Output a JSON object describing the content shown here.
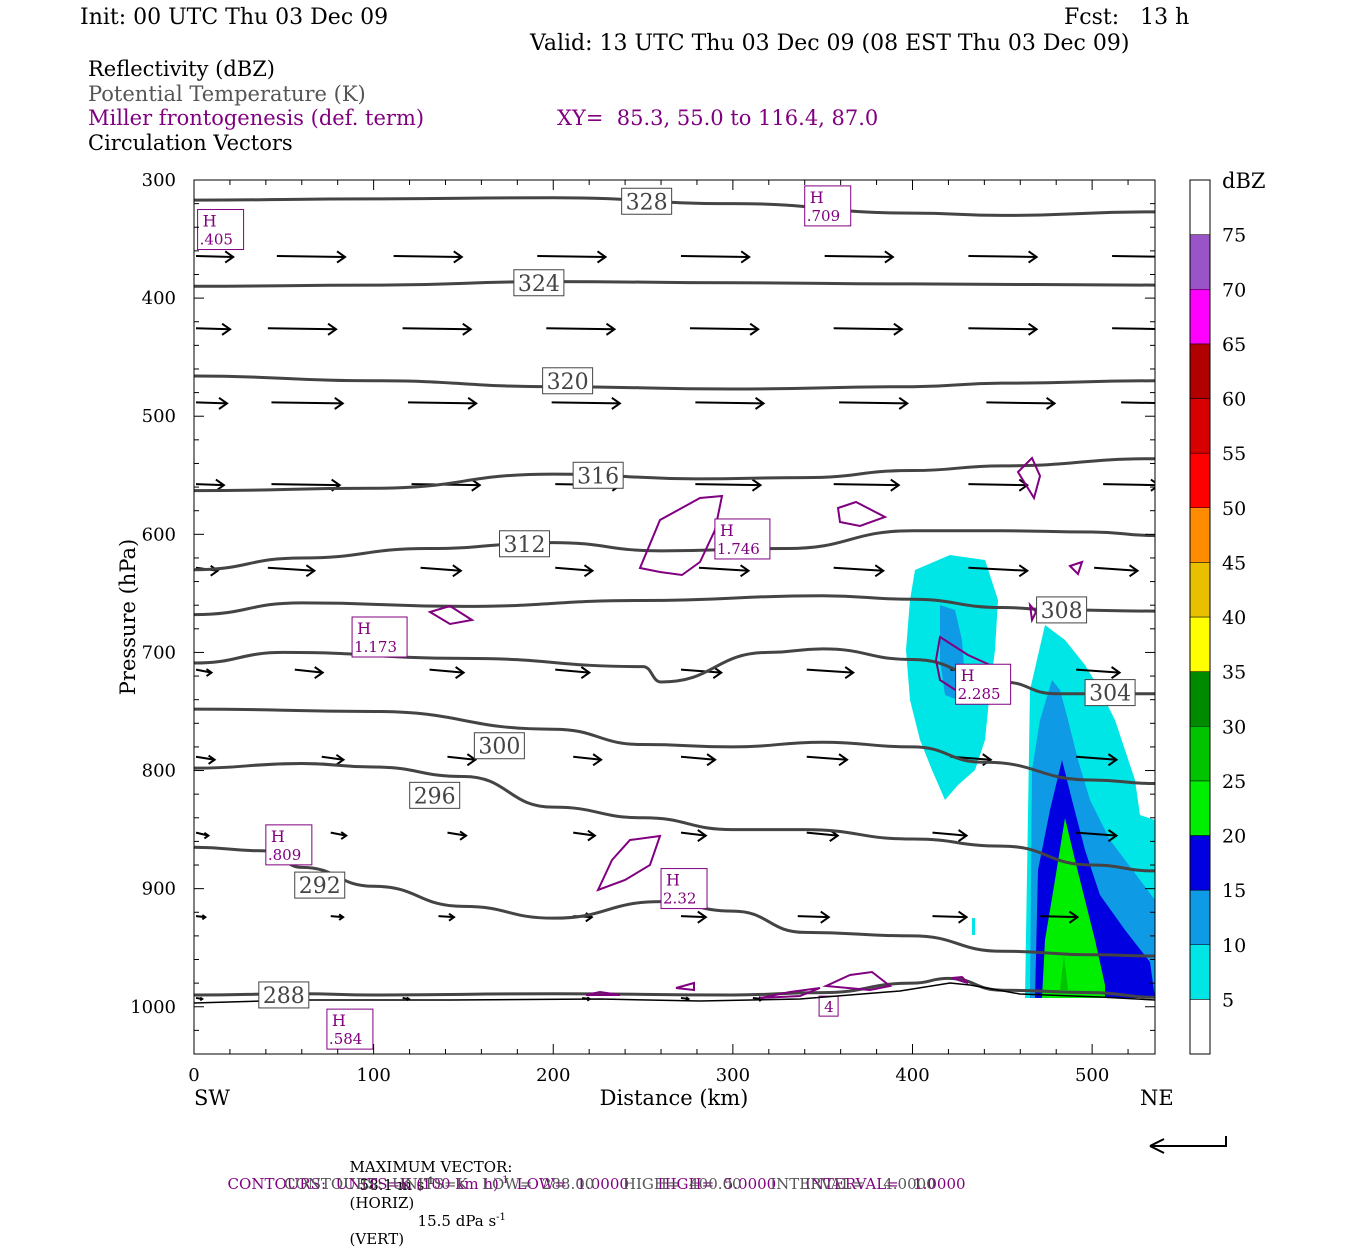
{
  "header": {
    "init": "Init: 00 UTC Thu 03 Dec 09",
    "fcst": "Fcst:   13 h",
    "valid": "Valid: 13 UTC Thu 03 Dec 09 (08 EST Thu 03 Dec 09)"
  },
  "fields": {
    "reflectivity": "Reflectivity (dBZ)",
    "theta": "Potential Temperature (K)",
    "miller": "Miller frontogenesis (def. term)",
    "xy": "XY=  85.3, 55.0 to 116.4, 87.0",
    "vectors": "Circulation Vectors"
  },
  "footer": {
    "max_vector_label": "MAXIMUM VECTOR:",
    "max_vector_horiz": "58.1 m s",
    "horiz_tag": "(HORIZ)",
    "max_vector_vert": "15.5 dPa s",
    "vert_tag": "(VERT)",
    "sup": "-1",
    "contours1_a": "CONTOURS:  UNITS=K (100 km h)",
    "contours1_b": "LOW=  1.0000      HIGH=  5.0000      INTERVAL=   1.0000",
    "contours2": "CONTOURS:  UNITS=K   LOW=  288.00      HIGH=  400.00      INTERVAL=    4.0000"
  },
  "colors": {
    "theta": "#444444",
    "miller": "#800080",
    "vector": "#000000"
  },
  "chart_data": {
    "type": "heatmap",
    "xlabel": "Distance (km)",
    "ylabel": "Pressure (hPa)",
    "xlim": [
      0,
      535
    ],
    "ylim": [
      1040,
      300
    ],
    "x_ticks": [
      0,
      100,
      200,
      300,
      400,
      500
    ],
    "y_ticks": [
      300,
      400,
      500,
      600,
      700,
      800,
      900,
      1000
    ],
    "x_endpoints": [
      "SW",
      "NE"
    ],
    "colorbar": {
      "unit": "dBZ",
      "levels": [
        5,
        10,
        15,
        20,
        25,
        30,
        35,
        40,
        45,
        50,
        55,
        60,
        65,
        70,
        75
      ],
      "colors": [
        "#ffffff",
        "#00e5e5",
        "#0f9ae6",
        "#0000e0",
        "#00ee00",
        "#00c400",
        "#008a00",
        "#ffff00",
        "#e8c000",
        "#ff8c00",
        "#ff0000",
        "#d60000",
        "#b00000",
        "#ff00ff",
        "#9955c8",
        "#ffffff"
      ]
    },
    "theta_contours": [
      {
        "value": "328",
        "points": [
          [
            0,
            317
          ],
          [
            100,
            316
          ],
          [
            200,
            315
          ],
          [
            300,
            320
          ],
          [
            400,
            328
          ],
          [
            450,
            330
          ],
          [
            535,
            327
          ]
        ],
        "label_at": [
          252,
          318
        ]
      },
      {
        "value": "324",
        "points": [
          [
            0,
            390
          ],
          [
            100,
            389
          ],
          [
            200,
            386
          ],
          [
            300,
            387
          ],
          [
            400,
            388
          ],
          [
            535,
            389
          ]
        ],
        "label_at": [
          192,
          387
        ]
      },
      {
        "value": "320",
        "points": [
          [
            0,
            466
          ],
          [
            100,
            470
          ],
          [
            200,
            475
          ],
          [
            300,
            477
          ],
          [
            400,
            475
          ],
          [
            450,
            472
          ],
          [
            535,
            470
          ]
        ],
        "label_at": [
          208,
          470
        ]
      },
      {
        "value": "316",
        "points": [
          [
            0,
            563
          ],
          [
            100,
            561
          ],
          [
            200,
            549
          ],
          [
            280,
            553
          ],
          [
            340,
            552
          ],
          [
            400,
            546
          ],
          [
            450,
            542
          ],
          [
            535,
            536
          ]
        ],
        "label_at": [
          225,
          550
        ]
      },
      {
        "value": "312",
        "points": [
          [
            0,
            630
          ],
          [
            60,
            620
          ],
          [
            130,
            612
          ],
          [
            200,
            607
          ],
          [
            260,
            614
          ],
          [
            330,
            612
          ],
          [
            400,
            597
          ],
          [
            450,
            597
          ],
          [
            500,
            598
          ],
          [
            535,
            601
          ]
        ],
        "label_at": [
          184,
          608
        ]
      },
      {
        "value": "308",
        "points": [
          [
            0,
            668
          ],
          [
            60,
            658
          ],
          [
            150,
            661
          ],
          [
            250,
            656
          ],
          [
            350,
            652
          ],
          [
            400,
            655
          ],
          [
            450,
            662
          ],
          [
            480,
            664
          ],
          [
            535,
            665
          ]
        ],
        "label_at": [
          483,
          664
        ]
      },
      {
        "value": "304",
        "points": [
          [
            0,
            709
          ],
          [
            50,
            700
          ],
          [
            150,
            705
          ],
          [
            250,
            712
          ],
          [
            260,
            725
          ],
          [
            320,
            700
          ],
          [
            350,
            697
          ],
          [
            400,
            706
          ],
          [
            450,
            725
          ],
          [
            480,
            735
          ],
          [
            535,
            735
          ]
        ],
        "label_at": [
          510,
          734
        ]
      },
      {
        "value": "300",
        "points": [
          [
            0,
            748
          ],
          [
            100,
            750
          ],
          [
            200,
            765
          ],
          [
            250,
            778
          ],
          [
            300,
            780
          ],
          [
            350,
            776
          ],
          [
            400,
            780
          ],
          [
            440,
            793
          ],
          [
            500,
            808
          ],
          [
            535,
            811
          ]
        ],
        "label_at": [
          170,
          779
        ]
      },
      {
        "value": "296",
        "points": [
          [
            0,
            798
          ],
          [
            60,
            794
          ],
          [
            100,
            797
          ],
          [
            150,
            805
          ],
          [
            200,
            831
          ],
          [
            250,
            840
          ],
          [
            300,
            850
          ],
          [
            340,
            850
          ],
          [
            400,
            858
          ],
          [
            450,
            864
          ],
          [
            500,
            880
          ],
          [
            535,
            885
          ]
        ],
        "label_at": [
          134,
          821
        ]
      },
      {
        "value": "292",
        "points": [
          [
            0,
            865
          ],
          [
            40,
            868
          ],
          [
            60,
            882
          ],
          [
            100,
            898
          ],
          [
            150,
            915
          ],
          [
            200,
            925
          ],
          [
            260,
            911
          ],
          [
            300,
            919
          ],
          [
            340,
            937
          ],
          [
            400,
            940
          ],
          [
            450,
            953
          ],
          [
            500,
            956
          ],
          [
            535,
            957
          ]
        ],
        "label_at": [
          70,
          897
        ]
      },
      {
        "value": "288",
        "points": [
          [
            0,
            990
          ],
          [
            60,
            989
          ],
          [
            100,
            990
          ],
          [
            200,
            989
          ],
          [
            300,
            990
          ],
          [
            350,
            988
          ],
          [
            400,
            980
          ],
          [
            420,
            976
          ],
          [
            450,
            986
          ],
          [
            500,
            988
          ],
          [
            535,
            992
          ]
        ],
        "label_at": [
          50,
          990
        ]
      }
    ],
    "miller_maxima": [
      {
        "value": ".405",
        "at": [
          2,
          325
        ]
      },
      {
        "value": ".709",
        "at": [
          340,
          305
        ]
      },
      {
        "value": "1.746",
        "at": [
          290,
          587
        ]
      },
      {
        "value": "1.173",
        "at": [
          88,
          670
        ]
      },
      {
        "value": "2.285",
        "at": [
          424,
          710
        ]
      },
      {
        "value": ".809",
        "at": [
          40,
          846
        ]
      },
      {
        "value": "2.32",
        "at": [
          260,
          883
        ]
      },
      {
        "value": ".584",
        "at": [
          74,
          1002
        ]
      },
      {
        "value": "4",
        "at": [
          348,
          991
        ]
      }
    ]
  }
}
